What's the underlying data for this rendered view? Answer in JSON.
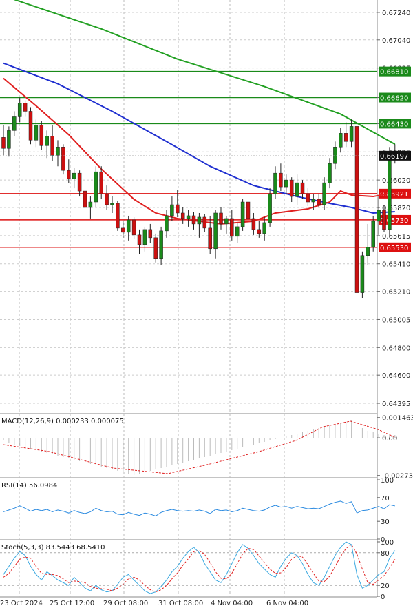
{
  "chart_data": {
    "type": "candlestick",
    "price_axis": {
      "ticks": [
        "0.67240",
        "0.67040",
        "0.66835",
        "0.66620",
        "0.66430",
        "0.66225",
        "0.66020",
        "0.65820",
        "0.65615",
        "0.65410",
        "0.65210",
        "0.65005",
        "0.64800",
        "0.64600",
        "0.64395"
      ],
      "ylim": [
        0.6432,
        0.6733
      ]
    },
    "time_axis": {
      "labels": [
        "23 Oct 2024",
        "25 Oct 12:00",
        "29 Oct 08:00",
        "31 Oct 08:00",
        "4 Nov 04:00",
        "6 Nov 04:00"
      ]
    },
    "current_price": "0.66197",
    "resistance_levels": [
      "0.66810",
      "0.66620",
      "0.66430"
    ],
    "support_levels": [
      "0.65921",
      "0.65730",
      "0.65530"
    ],
    "candles": [
      [
        0.6633,
        0.6642,
        0.662,
        0.6625
      ],
      [
        0.6625,
        0.6641,
        0.6619,
        0.6638
      ],
      [
        0.6638,
        0.6652,
        0.6634,
        0.6648
      ],
      [
        0.6648,
        0.6662,
        0.6644,
        0.6658
      ],
      [
        0.6658,
        0.666,
        0.6648,
        0.6652
      ],
      [
        0.6652,
        0.6655,
        0.6628,
        0.6631
      ],
      [
        0.6631,
        0.6646,
        0.6626,
        0.6642
      ],
      [
        0.6642,
        0.6645,
        0.6624,
        0.6627
      ],
      [
        0.6627,
        0.6638,
        0.6618,
        0.6634
      ],
      [
        0.6634,
        0.6642,
        0.6616,
        0.662
      ],
      [
        0.662,
        0.6631,
        0.6612,
        0.6626
      ],
      [
        0.6626,
        0.6628,
        0.6606,
        0.6609
      ],
      [
        0.6609,
        0.6617,
        0.66,
        0.6603
      ],
      [
        0.6603,
        0.6611,
        0.6596,
        0.6607
      ],
      [
        0.6607,
        0.6609,
        0.659,
        0.6594
      ],
      [
        0.6594,
        0.66,
        0.6578,
        0.6582
      ],
      [
        0.6582,
        0.659,
        0.6574,
        0.6586
      ],
      [
        0.6586,
        0.6612,
        0.6582,
        0.6608
      ],
      [
        0.6608,
        0.6612,
        0.6588,
        0.6592
      ],
      [
        0.6592,
        0.6598,
        0.658,
        0.6584
      ],
      [
        0.6584,
        0.659,
        0.6578,
        0.6585
      ],
      [
        0.6585,
        0.6587,
        0.6565,
        0.6567
      ],
      [
        0.6567,
        0.6572,
        0.656,
        0.6564
      ],
      [
        0.6564,
        0.6576,
        0.6558,
        0.6573
      ],
      [
        0.6573,
        0.6575,
        0.6559,
        0.6562
      ],
      [
        0.6562,
        0.6566,
        0.6548,
        0.6555
      ],
      [
        0.6555,
        0.6568,
        0.655,
        0.6566
      ],
      [
        0.6566,
        0.657,
        0.6556,
        0.656
      ],
      [
        0.656,
        0.6563,
        0.6542,
        0.6545
      ],
      [
        0.6545,
        0.6568,
        0.654,
        0.6565
      ],
      [
        0.6565,
        0.658,
        0.656,
        0.6576
      ],
      [
        0.6576,
        0.659,
        0.6572,
        0.6584
      ],
      [
        0.6584,
        0.6595,
        0.6575,
        0.6578
      ],
      [
        0.6578,
        0.6582,
        0.657,
        0.6574
      ],
      [
        0.6574,
        0.658,
        0.6568,
        0.6576
      ],
      [
        0.6576,
        0.6579,
        0.6566,
        0.657
      ],
      [
        0.657,
        0.6578,
        0.656,
        0.6575
      ],
      [
        0.6575,
        0.6577,
        0.6564,
        0.6567
      ],
      [
        0.6567,
        0.6576,
        0.6548,
        0.6552
      ],
      [
        0.6552,
        0.658,
        0.6545,
        0.6578
      ],
      [
        0.6578,
        0.6582,
        0.6566,
        0.657
      ],
      [
        0.657,
        0.6576,
        0.6563,
        0.6574
      ],
      [
        0.6574,
        0.658,
        0.6558,
        0.6561
      ],
      [
        0.6561,
        0.6571,
        0.6556,
        0.6568
      ],
      [
        0.6568,
        0.6588,
        0.6565,
        0.6586
      ],
      [
        0.6586,
        0.659,
        0.657,
        0.6574
      ],
      [
        0.6574,
        0.6578,
        0.6562,
        0.6566
      ],
      [
        0.6566,
        0.6572,
        0.656,
        0.6563
      ],
      [
        0.6563,
        0.6575,
        0.6558,
        0.6571
      ],
      [
        0.6571,
        0.6596,
        0.6568,
        0.6592
      ],
      [
        0.6592,
        0.6612,
        0.6588,
        0.6607
      ],
      [
        0.6607,
        0.6614,
        0.6594,
        0.6597
      ],
      [
        0.6597,
        0.6606,
        0.6592,
        0.6602
      ],
      [
        0.6602,
        0.6604,
        0.6586,
        0.659
      ],
      [
        0.659,
        0.6606,
        0.6584,
        0.66
      ],
      [
        0.66,
        0.6602,
        0.6588,
        0.6592
      ],
      [
        0.6592,
        0.6596,
        0.6583,
        0.6586
      ],
      [
        0.6586,
        0.6592,
        0.658,
        0.6588
      ],
      [
        0.6588,
        0.6592,
        0.6582,
        0.6584
      ],
      [
        0.6584,
        0.6604,
        0.658,
        0.66
      ],
      [
        0.66,
        0.6618,
        0.6596,
        0.6614
      ],
      [
        0.6614,
        0.663,
        0.661,
        0.6626
      ],
      [
        0.6626,
        0.664,
        0.6622,
        0.6636
      ],
      [
        0.6636,
        0.6644,
        0.6626,
        0.663
      ],
      [
        0.663,
        0.6646,
        0.6626,
        0.6641
      ],
      [
        0.6641,
        0.6642,
        0.6514,
        0.652
      ],
      [
        0.652,
        0.655,
        0.6516,
        0.6547
      ],
      [
        0.6547,
        0.657,
        0.654,
        0.6553
      ],
      [
        0.6553,
        0.6576,
        0.655,
        0.6572
      ],
      [
        0.6572,
        0.659,
        0.6562,
        0.658
      ],
      [
        0.658,
        0.6583,
        0.6564,
        0.6566
      ],
      [
        0.6566,
        0.6626,
        0.6562,
        0.662
      ],
      [
        0.662,
        0.6628,
        0.6614,
        0.662
      ]
    ],
    "moving_averages": [
      {
        "color": "#22a022",
        "values": [
          [
            0,
            0.6736
          ],
          [
            18,
            0.6712
          ],
          [
            32,
            0.669
          ],
          [
            48,
            0.667
          ],
          [
            62,
            0.665
          ],
          [
            72,
            0.6628
          ]
        ]
      },
      {
        "color": "#2030d0",
        "values": [
          [
            0,
            0.6687
          ],
          [
            10,
            0.6672
          ],
          [
            20,
            0.6652
          ],
          [
            30,
            0.663
          ],
          [
            38,
            0.6612
          ],
          [
            46,
            0.6598
          ],
          [
            54,
            0.659
          ],
          [
            60,
            0.6585
          ],
          [
            64,
            0.6582
          ],
          [
            68,
            0.6578
          ],
          [
            72,
            0.6579
          ]
        ]
      },
      {
        "color": "#e02020",
        "values": [
          [
            0,
            0.6676
          ],
          [
            6,
            0.6656
          ],
          [
            12,
            0.6635
          ],
          [
            18,
            0.661
          ],
          [
            24,
            0.6588
          ],
          [
            28,
            0.6578
          ],
          [
            32,
            0.6574
          ],
          [
            40,
            0.657
          ],
          [
            46,
            0.6572
          ],
          [
            50,
            0.6578
          ],
          [
            56,
            0.6581
          ],
          [
            60,
            0.6586
          ],
          [
            62,
            0.6594
          ],
          [
            64,
            0.6591
          ],
          [
            68,
            0.659
          ],
          [
            72,
            0.6593
          ]
        ]
      }
    ],
    "macd": {
      "label": "MACD(12,26,9) 0.000233 0.000075",
      "ticks": [
        "0.001463",
        "0.00",
        "-0.002734"
      ],
      "ylim": [
        -0.00285,
        0.0016
      ],
      "histogram": [
        -0.0002,
        -0.0004,
        -0.0005,
        -0.0006,
        -0.0007,
        -0.0008,
        -0.0009,
        -0.001,
        -0.0011,
        -0.0012,
        -0.0013,
        -0.0014,
        -0.0015,
        -0.0016,
        -0.0017,
        -0.0018,
        -0.0019,
        -0.002,
        -0.0021,
        -0.0022,
        -0.0023,
        -0.0024,
        -0.0025,
        -0.0026,
        -0.0027,
        -0.0026,
        -0.0025,
        -0.0024,
        -0.0023,
        -0.0022,
        -0.0021,
        -0.002,
        -0.0019,
        -0.0018,
        -0.0017,
        -0.0016,
        -0.0015,
        -0.0014,
        -0.0013,
        -0.0012,
        -0.0011,
        -0.001,
        -0.0009,
        -0.0008,
        -0.0007,
        -0.0006,
        -0.0005,
        -0.0004,
        -0.0003,
        -0.0002,
        -0.0001,
        0.0,
        0.0001,
        0.0002,
        0.0003,
        0.0004,
        0.0005,
        0.0006,
        0.0007,
        0.0008,
        0.0009,
        0.001,
        0.0011,
        0.0012,
        0.0013,
        0.001,
        0.0007,
        0.0005,
        0.0004,
        0.0003,
        0.0002,
        0.0002,
        0.0002
      ],
      "signal": [
        [
          0,
          -0.0005
        ],
        [
          10,
          -0.001
        ],
        [
          24,
          -0.0022
        ],
        [
          36,
          -0.0026
        ],
        [
          44,
          -0.002
        ],
        [
          56,
          -0.001
        ],
        [
          64,
          -0.0002
        ],
        [
          70,
          0.0008
        ],
        [
          76,
          0.0012
        ],
        [
          82,
          0.0006
        ],
        [
          86,
          0.0
        ]
      ]
    },
    "rsi": {
      "label": "RSI(14) 56.0984",
      "ticks": [
        "100",
        "70",
        "30",
        "0"
      ],
      "values": [
        46,
        49,
        52,
        56,
        52,
        47,
        50,
        48,
        50,
        46,
        49,
        47,
        44,
        48,
        45,
        43,
        46,
        52,
        48,
        46,
        47,
        42,
        41,
        45,
        42,
        40,
        44,
        42,
        39,
        45,
        48,
        50,
        48,
        47,
        48,
        47,
        49,
        47,
        43,
        50,
        48,
        49,
        46,
        48,
        52,
        50,
        48,
        47,
        49,
        54,
        57,
        54,
        55,
        52,
        55,
        53,
        51,
        52,
        51,
        55,
        59,
        62,
        64,
        60,
        63,
        44,
        48,
        49,
        52,
        55,
        51,
        58,
        56
      ]
    },
    "stoch": {
      "label": "Stoch(5,3,3) 83.5443 68.5410",
      "ticks": [
        "100",
        "80",
        "20",
        "0"
      ],
      "k": [
        40,
        55,
        70,
        82,
        75,
        55,
        40,
        30,
        45,
        38,
        30,
        25,
        20,
        35,
        25,
        15,
        10,
        20,
        12,
        8,
        10,
        22,
        35,
        40,
        30,
        20,
        10,
        5,
        8,
        18,
        30,
        45,
        55,
        70,
        82,
        90,
        80,
        60,
        45,
        30,
        25,
        40,
        60,
        80,
        95,
        88,
        75,
        60,
        50,
        40,
        35,
        55,
        70,
        80,
        75,
        60,
        40,
        25,
        20,
        35,
        55,
        75,
        90,
        100,
        95,
        40,
        15,
        20,
        30,
        40,
        45,
        70,
        84
      ],
      "d": [
        35,
        42,
        55,
        68,
        72,
        70,
        55,
        42,
        40,
        40,
        38,
        32,
        25,
        28,
        27,
        25,
        18,
        15,
        14,
        13,
        10,
        15,
        22,
        32,
        35,
        30,
        20,
        12,
        8,
        12,
        20,
        32,
        43,
        57,
        69,
        82,
        84,
        77,
        62,
        45,
        33,
        32,
        42,
        60,
        78,
        88,
        86,
        74,
        62,
        50,
        42,
        43,
        53,
        68,
        75,
        72,
        58,
        42,
        28,
        27,
        37,
        55,
        73,
        88,
        95,
        78,
        50,
        25,
        22,
        30,
        38,
        52,
        68
      ]
    }
  }
}
